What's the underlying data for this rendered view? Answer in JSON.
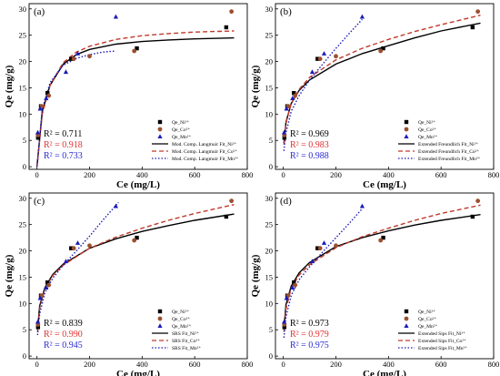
{
  "colors": {
    "ni": "#000000",
    "co": "#9b4f2f",
    "mn": "#1a1ab8",
    "co_line": "#c0392b",
    "co_text": "#e03030",
    "mn_text": "#2a2ad0"
  },
  "chart_data": [
    {
      "type": "scatter",
      "panel_label": "(a)",
      "xlabel": "Ce (mg/L)",
      "ylabel": "Qe (mg/g)",
      "xlim": [
        -30,
        800
      ],
      "ylim": [
        -0.5,
        31
      ],
      "xticks": [
        0,
        200,
        400,
        600,
        800
      ],
      "yticks": [
        0,
        5,
        10,
        15,
        20,
        25,
        30
      ],
      "legend_position": "bottom-right",
      "series": [
        {
          "name": "Qe_Ni²⁺",
          "key": "ni",
          "marker": "square",
          "points": [
            [
              4,
              5.5
            ],
            [
              15,
              11.5
            ],
            [
              40,
              14
            ],
            [
              130,
              20.5
            ],
            [
              380,
              22.5
            ],
            [
              720,
              26.5
            ]
          ]
        },
        {
          "name": "Qe_Co²⁺",
          "key": "co",
          "marker": "circle",
          "points": [
            [
              4,
              6
            ],
            [
              18,
              11.5
            ],
            [
              45,
              13.5
            ],
            [
              140,
              20.5
            ],
            [
              200,
              21
            ],
            [
              370,
              22
            ],
            [
              740,
              29.5
            ]
          ]
        },
        {
          "name": "Qe_Mn²⁺",
          "key": "mn",
          "marker": "triangle",
          "points": [
            [
              3,
              6.5
            ],
            [
              12,
              11
            ],
            [
              35,
              13
            ],
            [
              110,
              18
            ],
            [
              155,
              21.5
            ],
            [
              300,
              28.5
            ]
          ]
        }
      ],
      "fits": [
        {
          "name": "Mod. Comp. Langmuir Fit_Ni²⁺",
          "key": "ni",
          "dash": "solid",
          "points": [
            [
              0,
              0
            ],
            [
              20,
              10.5
            ],
            [
              50,
              15.5
            ],
            [
              100,
              19.5
            ],
            [
              150,
              21.3
            ],
            [
              200,
              22.3
            ],
            [
              300,
              23.3
            ],
            [
              400,
              23.8
            ],
            [
              500,
              24.1
            ],
            [
              600,
              24.3
            ],
            [
              750,
              24.5
            ]
          ]
        },
        {
          "name": "Mod. Comp. Langmuir Fit_Co²⁺",
          "key": "co_line",
          "dash": "dashed",
          "points": [
            [
              0,
              0
            ],
            [
              20,
              10
            ],
            [
              50,
              15.5
            ],
            [
              100,
              19.8
            ],
            [
              150,
              21.8
            ],
            [
              200,
              22.9
            ],
            [
              300,
              24.2
            ],
            [
              400,
              24.9
            ],
            [
              500,
              25.3
            ],
            [
              600,
              25.6
            ],
            [
              750,
              25.8
            ]
          ]
        },
        {
          "name": "Mod. Comp. Langmuir Fit_Mn²⁺",
          "key": "mn",
          "dash": "dotted",
          "points": [
            [
              0,
              0
            ],
            [
              20,
              11
            ],
            [
              50,
              16
            ],
            [
              100,
              19.3
            ],
            [
              150,
              20.6
            ],
            [
              200,
              21.3
            ],
            [
              250,
              21.8
            ],
            [
              300,
              22
            ]
          ]
        }
      ],
      "r2": [
        {
          "key": "ni",
          "text": "R² = 0.711"
        },
        {
          "key": "co_text",
          "text": "R² = 0.918"
        },
        {
          "key": "mn_text",
          "text": "R² = 0.733"
        }
      ]
    },
    {
      "type": "scatter",
      "panel_label": "(b)",
      "xlabel": "Ce (mg/L)",
      "ylabel": "Qe (mg/g)",
      "xlim": [
        -30,
        800
      ],
      "ylim": [
        -0.5,
        31
      ],
      "xticks": [
        0,
        200,
        400,
        600,
        800
      ],
      "yticks": [
        0,
        5,
        10,
        15,
        20,
        25,
        30
      ],
      "legend_position": "bottom-right",
      "series": [
        {
          "name": "Qe_Ni²⁺",
          "key": "ni",
          "marker": "square",
          "points": [
            [
              4,
              5.5
            ],
            [
              15,
              11.5
            ],
            [
              40,
              14
            ],
            [
              130,
              20.5
            ],
            [
              380,
              22.5
            ],
            [
              720,
              26.5
            ]
          ]
        },
        {
          "name": "Qe_Co²⁺",
          "key": "co",
          "marker": "circle",
          "points": [
            [
              4,
              6
            ],
            [
              18,
              11.5
            ],
            [
              45,
              13.5
            ],
            [
              140,
              20.5
            ],
            [
              200,
              21
            ],
            [
              370,
              22
            ],
            [
              740,
              29.5
            ]
          ]
        },
        {
          "name": "Qe_Mn²⁺",
          "key": "mn",
          "marker": "triangle",
          "points": [
            [
              3,
              6.5
            ],
            [
              12,
              11
            ],
            [
              35,
              13
            ],
            [
              110,
              18
            ],
            [
              155,
              21.5
            ],
            [
              300,
              28.5
            ]
          ]
        }
      ],
      "fits": [
        {
          "name": "Extended Freundlich Fit_Ni²⁺",
          "key": "ni",
          "dash": "solid",
          "points": [
            [
              2,
              4.5
            ],
            [
              10,
              8.5
            ],
            [
              30,
              12
            ],
            [
              60,
              14.5
            ],
            [
              100,
              16.5
            ],
            [
              200,
              19.5
            ],
            [
              300,
              21.5
            ],
            [
              400,
              23
            ],
            [
              500,
              24.5
            ],
            [
              600,
              25.8
            ],
            [
              750,
              27.3
            ]
          ]
        },
        {
          "name": "Extended Freundlich Fit_Co²⁺",
          "key": "co_line",
          "dash": "dashed",
          "points": [
            [
              2,
              4.2
            ],
            [
              10,
              8.3
            ],
            [
              30,
              12
            ],
            [
              60,
              14.7
            ],
            [
              100,
              17
            ],
            [
              200,
              20.3
            ],
            [
              300,
              22.5
            ],
            [
              400,
              24.2
            ],
            [
              500,
              25.7
            ],
            [
              600,
              27
            ],
            [
              750,
              28.8
            ]
          ]
        },
        {
          "name": "Extended Freundlich Fit_Mn²⁺",
          "key": "mn",
          "dash": "dotted",
          "points": [
            [
              2,
              3
            ],
            [
              10,
              6.5
            ],
            [
              30,
              10.5
            ],
            [
              60,
              13.5
            ],
            [
              100,
              16.5
            ],
            [
              150,
              19.5
            ],
            [
              200,
              22.5
            ],
            [
              250,
              25.3
            ],
            [
              300,
              28
            ]
          ]
        }
      ],
      "r2": [
        {
          "key": "ni",
          "text": "R² = 0.969"
        },
        {
          "key": "co_text",
          "text": "R² = 0.983"
        },
        {
          "key": "mn_text",
          "text": "R² = 0.988"
        }
      ]
    },
    {
      "type": "scatter",
      "panel_label": "(c)",
      "xlabel": "Ce (mg/L)",
      "ylabel": "Qe (mg/g)",
      "xlim": [
        -30,
        800
      ],
      "ylim": [
        -0.5,
        31
      ],
      "xticks": [
        0,
        200,
        400,
        600,
        800
      ],
      "yticks": [
        0,
        5,
        10,
        15,
        20,
        25,
        30
      ],
      "legend_position": "bottom-right",
      "series": [
        {
          "name": "Qe_Ni²⁺",
          "key": "ni",
          "marker": "square",
          "points": [
            [
              4,
              5.5
            ],
            [
              15,
              11.5
            ],
            [
              40,
              14
            ],
            [
              130,
              20.5
            ],
            [
              380,
              22.5
            ],
            [
              720,
              26.5
            ]
          ]
        },
        {
          "name": "Qe_Co²⁺",
          "key": "co",
          "marker": "circle",
          "points": [
            [
              4,
              6
            ],
            [
              18,
              11.5
            ],
            [
              45,
              13.5
            ],
            [
              140,
              20.5
            ],
            [
              200,
              21
            ],
            [
              370,
              22
            ],
            [
              740,
              29.5
            ]
          ]
        },
        {
          "name": "Qe_Mn²⁺",
          "key": "mn",
          "marker": "triangle",
          "points": [
            [
              3,
              6.5
            ],
            [
              12,
              11
            ],
            [
              35,
              13
            ],
            [
              110,
              18
            ],
            [
              155,
              21.5
            ],
            [
              300,
              28.5
            ]
          ]
        }
      ],
      "fits": [
        {
          "name": "SRS Fit_Ni²⁺",
          "key": "ni",
          "dash": "solid",
          "points": [
            [
              2,
              5
            ],
            [
              10,
              9.5
            ],
            [
              30,
              13
            ],
            [
              60,
              15.5
            ],
            [
              100,
              17.5
            ],
            [
              200,
              20.5
            ],
            [
              300,
              22.3
            ],
            [
              400,
              23.7
            ],
            [
              500,
              24.8
            ],
            [
              600,
              25.8
            ],
            [
              750,
              27
            ]
          ]
        },
        {
          "name": "SRS Fit_Co²⁺",
          "key": "co_line",
          "dash": "dashed",
          "points": [
            [
              2,
              4.5
            ],
            [
              10,
              9
            ],
            [
              30,
              12.8
            ],
            [
              60,
              15.3
            ],
            [
              100,
              17.3
            ],
            [
              200,
              20.5
            ],
            [
              300,
              22.6
            ],
            [
              400,
              24.3
            ],
            [
              500,
              25.8
            ],
            [
              600,
              27.1
            ],
            [
              750,
              28.8
            ]
          ]
        },
        {
          "name": "SRS Fit_Mn²⁺",
          "key": "mn",
          "dash": "dotted",
          "points": [
            [
              2,
              4
            ],
            [
              10,
              8
            ],
            [
              30,
              12
            ],
            [
              60,
              14.8
            ],
            [
              100,
              17.3
            ],
            [
              150,
              20
            ],
            [
              200,
              22.8
            ],
            [
              250,
              25.8
            ],
            [
              310,
              29.2
            ]
          ]
        }
      ],
      "r2": [
        {
          "key": "ni",
          "text": "R² = 0.839"
        },
        {
          "key": "co_text",
          "text": "R² = 0.990"
        },
        {
          "key": "mn_text",
          "text": "R² = 0.945"
        }
      ]
    },
    {
      "type": "scatter",
      "panel_label": "(d)",
      "xlabel": "Ce (mg/L)",
      "ylabel": "Qe (mg/g)",
      "xlim": [
        -30,
        800
      ],
      "ylim": [
        -0.5,
        31
      ],
      "xticks": [
        0,
        200,
        400,
        600,
        800
      ],
      "yticks": [
        0,
        5,
        10,
        15,
        20,
        25,
        30
      ],
      "legend_position": "bottom-right",
      "series": [
        {
          "name": "Qe_Ni²⁺",
          "key": "ni",
          "marker": "square",
          "points": [
            [
              4,
              5.5
            ],
            [
              15,
              11.5
            ],
            [
              40,
              14
            ],
            [
              130,
              20.5
            ],
            [
              380,
              22.5
            ],
            [
              720,
              26.5
            ]
          ]
        },
        {
          "name": "Qe_Co²⁺",
          "key": "co",
          "marker": "circle",
          "points": [
            [
              4,
              6
            ],
            [
              18,
              11.5
            ],
            [
              45,
              13.5
            ],
            [
              140,
              20.5
            ],
            [
              200,
              21
            ],
            [
              370,
              22
            ],
            [
              740,
              29.5
            ]
          ]
        },
        {
          "name": "Qe_Mn²⁺",
          "key": "mn",
          "marker": "triangle",
          "points": [
            [
              3,
              6.5
            ],
            [
              12,
              11
            ],
            [
              35,
              13
            ],
            [
              110,
              18
            ],
            [
              155,
              21.5
            ],
            [
              300,
              28.5
            ]
          ]
        }
      ],
      "fits": [
        {
          "name": "Extended Sips Fit_Ni²⁺",
          "key": "ni",
          "dash": "solid",
          "points": [
            [
              2,
              5.2
            ],
            [
              10,
              9.8
            ],
            [
              30,
              13.3
            ],
            [
              60,
              15.8
            ],
            [
              100,
              17.8
            ],
            [
              200,
              20.8
            ],
            [
              300,
              22.5
            ],
            [
              400,
              23.8
            ],
            [
              500,
              24.9
            ],
            [
              600,
              25.8
            ],
            [
              750,
              26.9
            ]
          ]
        },
        {
          "name": "Extended Sips Fit_Co²⁺",
          "key": "co_line",
          "dash": "dashed",
          "points": [
            [
              2,
              4.6
            ],
            [
              10,
              9
            ],
            [
              30,
              12.9
            ],
            [
              60,
              15.4
            ],
            [
              100,
              17.4
            ],
            [
              200,
              20.6
            ],
            [
              300,
              22.7
            ],
            [
              400,
              24.3
            ],
            [
              500,
              25.8
            ],
            [
              600,
              27.1
            ],
            [
              750,
              28.7
            ]
          ]
        },
        {
          "name": "Extended Sips Fit_Mn²⁺",
          "key": "mn",
          "dash": "dotted",
          "points": [
            [
              2,
              3.5
            ],
            [
              10,
              7.5
            ],
            [
              30,
              11.5
            ],
            [
              60,
              14.5
            ],
            [
              100,
              17
            ],
            [
              150,
              19.8
            ],
            [
              200,
              22.5
            ],
            [
              250,
              25.2
            ],
            [
              300,
              28
            ]
          ]
        }
      ],
      "r2": [
        {
          "key": "ni",
          "text": "R² = 0.973"
        },
        {
          "key": "co_text",
          "text": "R² = 0.979"
        },
        {
          "key": "mn_text",
          "text": "R² = 0.975"
        }
      ]
    }
  ]
}
